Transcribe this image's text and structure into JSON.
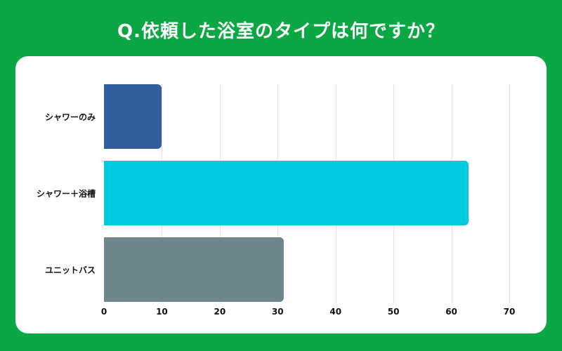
{
  "title": "Q.依頼した浴室のタイプは何ですか？",
  "colors": {
    "background": "#0aa744",
    "card": "#ffffff"
  },
  "chart_data": {
    "type": "bar",
    "orientation": "horizontal",
    "title": "Q.依頼した浴室のタイプは何ですか？",
    "categories": [
      "シャワーのみ",
      "シャワー＋浴槽",
      "ユニットバス"
    ],
    "values": [
      10,
      63,
      31
    ],
    "colors": [
      "#325d9c",
      "#00c9dd",
      "#6e858b"
    ],
    "xlabel": "",
    "ylabel": "",
    "xlim": [
      0,
      70
    ],
    "xticks": [
      "0",
      "10",
      "20",
      "30",
      "40",
      "50",
      "60",
      "70"
    ],
    "grid": true,
    "legend": null
  }
}
